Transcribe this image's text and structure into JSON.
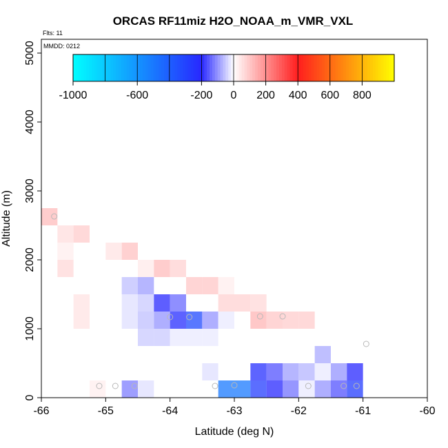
{
  "chart_data": {
    "type": "heatmap",
    "title": "ORCAS RF11miz H2O_NOAA_m_VMR_VXL",
    "xlabel": "Latitude (deg N)",
    "ylabel": "Altitude (m)",
    "xlim": [
      -66,
      -60
    ],
    "ylim": [
      0,
      5200
    ],
    "x_ticks": [
      -66,
      -65,
      -64,
      -63,
      -62,
      -61,
      -60
    ],
    "y_ticks": [
      0,
      1000,
      2000,
      3000,
      4000,
      5000
    ],
    "annotations": [
      "Flts: 11",
      "MMDD: 0212"
    ],
    "colorbar": {
      "range": [
        -1000,
        1000
      ],
      "tick_values": [
        -1000,
        -600,
        -200,
        0,
        200,
        400,
        600,
        800
      ],
      "tick_labels": [
        "-1000",
        "-600",
        "-200",
        "0",
        "200",
        "400",
        "600",
        "800"
      ]
    },
    "bin_size": {
      "lat": 0.25,
      "alt": 250
    },
    "cells": [
      {
        "lat": -65.875,
        "alt": 2625,
        "value": 120
      },
      {
        "lat": -65.625,
        "alt": 2375,
        "value": 60
      },
      {
        "lat": -65.375,
        "alt": 2375,
        "value": 90
      },
      {
        "lat": -65.625,
        "alt": 2125,
        "value": 30
      },
      {
        "lat": -65.625,
        "alt": 1875,
        "value": 70
      },
      {
        "lat": -64.875,
        "alt": 2125,
        "value": 50
      },
      {
        "lat": -64.625,
        "alt": 2125,
        "value": 110
      },
      {
        "lat": -64.375,
        "alt": 1875,
        "value": 40
      },
      {
        "lat": -64.125,
        "alt": 1875,
        "value": 120
      },
      {
        "lat": -63.875,
        "alt": 1875,
        "value": 80
      },
      {
        "lat": -64.625,
        "alt": 1625,
        "value": -60
      },
      {
        "lat": -64.375,
        "alt": 1625,
        "value": -90
      },
      {
        "lat": -63.625,
        "alt": 1625,
        "value": 100
      },
      {
        "lat": -63.375,
        "alt": 1625,
        "value": 100
      },
      {
        "lat": -63.125,
        "alt": 1625,
        "value": 30
      },
      {
        "lat": -65.375,
        "alt": 1375,
        "value": 50
      },
      {
        "lat": -64.625,
        "alt": 1375,
        "value": -30
      },
      {
        "lat": -64.375,
        "alt": 1375,
        "value": -50
      },
      {
        "lat": -64.125,
        "alt": 1375,
        "value": -200
      },
      {
        "lat": -63.875,
        "alt": 1375,
        "value": -140
      },
      {
        "lat": -63.125,
        "alt": 1375,
        "value": 80
      },
      {
        "lat": -62.875,
        "alt": 1375,
        "value": 80
      },
      {
        "lat": -62.625,
        "alt": 1375,
        "value": 70
      },
      {
        "lat": -65.375,
        "alt": 1125,
        "value": 50
      },
      {
        "lat": -64.625,
        "alt": 1125,
        "value": -30
      },
      {
        "lat": -64.375,
        "alt": 1125,
        "value": -60
      },
      {
        "lat": -64.125,
        "alt": 1125,
        "value": -100
      },
      {
        "lat": -63.875,
        "alt": 1125,
        "value": -220
      },
      {
        "lat": -63.625,
        "alt": 1125,
        "value": -330
      },
      {
        "lat": -63.375,
        "alt": 1125,
        "value": -100
      },
      {
        "lat": -63.125,
        "alt": 1125,
        "value": -20
      },
      {
        "lat": -62.625,
        "alt": 1125,
        "value": 130
      },
      {
        "lat": -62.375,
        "alt": 1125,
        "value": 100
      },
      {
        "lat": -62.125,
        "alt": 1125,
        "value": 90
      },
      {
        "lat": -61.875,
        "alt": 1125,
        "value": 90
      },
      {
        "lat": -64.375,
        "alt": 875,
        "value": -50
      },
      {
        "lat": -64.125,
        "alt": 875,
        "value": -50
      },
      {
        "lat": -63.875,
        "alt": 875,
        "value": -20
      },
      {
        "lat": -63.625,
        "alt": 875,
        "value": -20
      },
      {
        "lat": -63.375,
        "alt": 875,
        "value": -20
      },
      {
        "lat": -61.625,
        "alt": 625,
        "value": -80
      },
      {
        "lat": -63.375,
        "alt": 375,
        "value": -30
      },
      {
        "lat": -62.625,
        "alt": 375,
        "value": -230
      },
      {
        "lat": -62.375,
        "alt": 375,
        "value": -160
      },
      {
        "lat": -62.125,
        "alt": 375,
        "value": -90
      },
      {
        "lat": -61.875,
        "alt": 375,
        "value": -70
      },
      {
        "lat": -61.625,
        "alt": 375,
        "value": -20
      },
      {
        "lat": -61.375,
        "alt": 375,
        "value": -100
      },
      {
        "lat": -61.125,
        "alt": 375,
        "value": -200
      },
      {
        "lat": -65.125,
        "alt": 125,
        "value": 30
      },
      {
        "lat": -64.625,
        "alt": 125,
        "value": -120
      },
      {
        "lat": -64.375,
        "alt": 125,
        "value": -30
      },
      {
        "lat": -63.125,
        "alt": 125,
        "value": -500
      },
      {
        "lat": -62.875,
        "alt": 125,
        "value": -500
      },
      {
        "lat": -62.625,
        "alt": 125,
        "value": -280
      },
      {
        "lat": -62.375,
        "alt": 125,
        "value": -200
      },
      {
        "lat": -62.125,
        "alt": 125,
        "value": -130
      },
      {
        "lat": -61.875,
        "alt": 125,
        "value": -20
      },
      {
        "lat": -61.625,
        "alt": 125,
        "value": -100
      },
      {
        "lat": -61.375,
        "alt": 125,
        "value": -160
      },
      {
        "lat": -61.125,
        "alt": 125,
        "value": -280
      }
    ],
    "points": [
      {
        "lat": -65.8,
        "alt": 2630
      },
      {
        "lat": -65.1,
        "alt": 170
      },
      {
        "lat": -64.85,
        "alt": 170
      },
      {
        "lat": -64.55,
        "alt": 170
      },
      {
        "lat": -64.0,
        "alt": 1170
      },
      {
        "lat": -63.7,
        "alt": 1170
      },
      {
        "lat": -63.3,
        "alt": 170
      },
      {
        "lat": -63.0,
        "alt": 180
      },
      {
        "lat": -62.6,
        "alt": 1180
      },
      {
        "lat": -62.25,
        "alt": 1180
      },
      {
        "lat": -61.85,
        "alt": 170
      },
      {
        "lat": -61.3,
        "alt": 170
      },
      {
        "lat": -61.1,
        "alt": 170
      },
      {
        "lat": -60.95,
        "alt": 780
      }
    ]
  }
}
